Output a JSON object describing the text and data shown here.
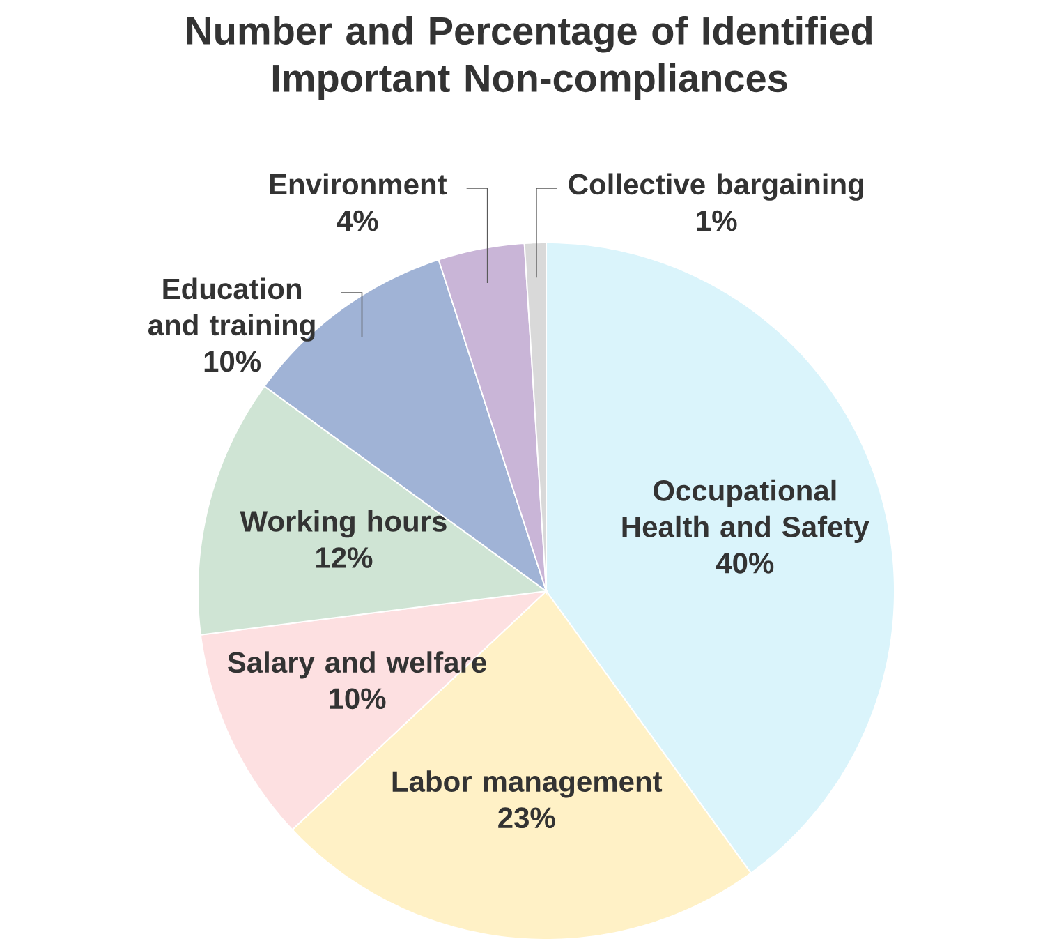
{
  "chart_data": {
    "type": "pie",
    "title": "Number and Percentage of Identified Important Non-compliances",
    "categories": [
      "Occupational Health and Safety",
      "Labor management",
      "Salary and welfare",
      "Working hours",
      "Education and training",
      "Environment",
      "Collective bargaining"
    ],
    "values": [
      40,
      23,
      10,
      12,
      10,
      4,
      1
    ],
    "value_labels": [
      "40%",
      "23%",
      "10%",
      "12%",
      "10%",
      "4%",
      "1%"
    ],
    "colors": [
      "#daf4fb",
      "#fff1c6",
      "#fde0e1",
      "#cfe4d4",
      "#a0b3d6",
      "#c9b5d7",
      "#d9d9d9"
    ]
  }
}
